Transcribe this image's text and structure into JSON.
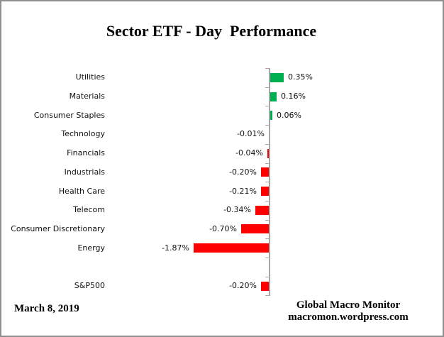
{
  "title": "Sector ETF - Day  Performance",
  "footer": {
    "date": "March 8, 2019",
    "source_line1": "Global Macro Monitor",
    "source_line2": "macromon.wordpress.com"
  },
  "canvas": {
    "background": "#FFFFFF",
    "border_color": "#8F8F8F"
  },
  "chart_data": {
    "type": "bar",
    "orientation": "horizontal",
    "title": "Sector ETF - Day  Performance",
    "categories": [
      "Utilities",
      "Materials",
      "Consumer Staples",
      "Technology",
      "Financials",
      "Industrials",
      "Health Care",
      "Telecom",
      "Consumer Discretionary",
      "Energy",
      "",
      "S&P500"
    ],
    "values": [
      0.35,
      0.16,
      0.06,
      -0.01,
      -0.04,
      -0.2,
      -0.21,
      -0.34,
      -0.7,
      -1.87,
      null,
      -0.2
    ],
    "value_labels": [
      "0.35%",
      "0.16%",
      "0.06%",
      "-0.01%",
      "-0.04%",
      "-0.20%",
      "-0.21%",
      "-0.34%",
      "-0.70%",
      "-1.87%",
      "",
      "-0.20%"
    ],
    "unit": "percent",
    "xlim": [
      -2.0,
      0.5
    ],
    "grid": false,
    "legend": false,
    "value_labels_shown": true,
    "positive_color": "#00B050",
    "negative_color": "#FF0000",
    "axis_color": "#A6A6A6"
  }
}
